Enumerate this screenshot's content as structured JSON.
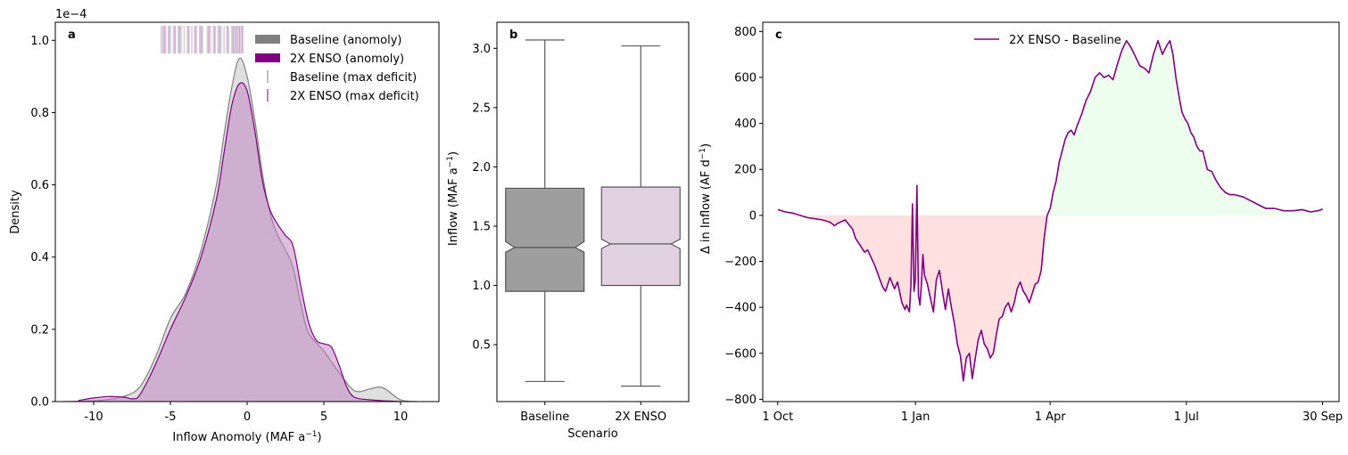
{
  "chart_data": [
    {
      "panel": "a",
      "type": "area",
      "xlabel": "Inflow Anomoly (MAF a",
      "xlabel_sup": "−1",
      "xlabel_end": ")",
      "ylabel": "Density",
      "offset_text": "1e−4",
      "xlim": [
        -12.5,
        12.5
      ],
      "ylim": [
        0,
        1.05
      ],
      "xticks": [
        -10,
        -5,
        0,
        5,
        10
      ],
      "xtick_labels": [
        "-10",
        "-5",
        "0",
        "5",
        "10"
      ],
      "yticks": [
        0,
        0.2,
        0.4,
        0.6,
        0.8,
        1.0
      ],
      "ytick_labels": [
        "0.0",
        "0.2",
        "0.4",
        "0.6",
        "0.8",
        "1.0"
      ],
      "legend_position": "top-right",
      "legend": [
        {
          "label": "Baseline (anomoly)",
          "kind": "patch",
          "color": "#808080"
        },
        {
          "label": "2X ENSO (anomoly)",
          "kind": "patch",
          "color": "#800080"
        },
        {
          "label": "Baseline (max deficit)",
          "kind": "tick",
          "color": "#808080"
        },
        {
          "label": "2X ENSO (max deficit)",
          "kind": "tick",
          "color": "#800080"
        }
      ],
      "series": [
        {
          "name": "Baseline (anomoly)",
          "line_color": "#808080",
          "fill_color": "#c0c0c0",
          "x": [
            -12,
            -10,
            -9,
            -8,
            -7,
            -6,
            -5,
            -4,
            -3,
            -2,
            -1.5,
            -1,
            -0.5,
            0,
            0.5,
            1,
            1.5,
            2,
            2.5,
            3,
            3.5,
            4,
            5,
            6,
            7,
            8,
            8.5,
            9,
            10,
            11
          ],
          "y": [
            0,
            0.002,
            0.006,
            0.015,
            0.04,
            0.12,
            0.23,
            0.3,
            0.42,
            0.6,
            0.74,
            0.87,
            0.95,
            0.9,
            0.78,
            0.63,
            0.52,
            0.46,
            0.42,
            0.37,
            0.27,
            0.19,
            0.14,
            0.08,
            0.03,
            0.035,
            0.04,
            0.035,
            0.005,
            0
          ]
        },
        {
          "name": "2X ENSO (anomoly)",
          "line_color": "#800080",
          "fill_color": "#bf7fbf",
          "x": [
            -11,
            -10,
            -9,
            -8,
            -7.5,
            -7,
            -6,
            -5,
            -4,
            -3,
            -2,
            -1.5,
            -1,
            -0.5,
            0,
            0.5,
            1,
            1.5,
            2,
            2.5,
            3,
            3.5,
            4,
            4.5,
            5,
            5.5,
            6,
            6.5,
            7,
            8,
            9,
            10
          ],
          "y": [
            0.003,
            0.01,
            0.014,
            0.012,
            0.008,
            0.018,
            0.1,
            0.2,
            0.29,
            0.4,
            0.56,
            0.69,
            0.82,
            0.88,
            0.86,
            0.75,
            0.61,
            0.53,
            0.49,
            0.46,
            0.43,
            0.32,
            0.22,
            0.17,
            0.16,
            0.15,
            0.1,
            0.04,
            0.012,
            0.005,
            0.002,
            0
          ]
        }
      ],
      "max_deficit_ticks": {
        "Baseline (max deficit)": {
          "color": "#808080",
          "x": [
            -5.6,
            -5.5,
            -5.3,
            -5.0,
            -4.8,
            -4.5,
            -4.3,
            -4.1,
            -3.9,
            -3.6,
            -3.3,
            -3.1,
            -2.9,
            -2.6,
            -2.4,
            -2.2,
            -1.9,
            -1.7,
            -1.5,
            -1.2,
            -1.0,
            -0.8,
            -0.6,
            -0.4
          ]
        },
        "2X ENSO (max deficit)": {
          "color": "#800080",
          "x": [
            -5.4,
            -5.1,
            -4.7,
            -4.4,
            -3.8,
            -3.4,
            -3.0,
            -2.5,
            -2.1,
            -1.8,
            -1.3,
            -0.9,
            -0.7,
            -0.5,
            -0.3
          ]
        }
      }
    },
    {
      "panel": "b",
      "type": "box",
      "xlabel": "Scenario",
      "ylabel": "Inflow (MAF a",
      "ylabel_sup": "−1",
      "ylabel_end": ")",
      "ylim": [
        0.02,
        3.22
      ],
      "yticks": [
        0.5,
        1.0,
        1.5,
        2.0,
        2.5,
        3.0
      ],
      "ytick_labels": [
        "0.5",
        "1.0",
        "1.5",
        "2.0",
        "2.5",
        "3.0"
      ],
      "categories": [
        "Baseline",
        "2X ENSO"
      ],
      "boxes": [
        {
          "name": "Baseline",
          "color": "#9e9e9e",
          "whisker_low": 0.19,
          "q1": 0.95,
          "notch_low": 1.28,
          "median": 1.32,
          "notch_high": 1.37,
          "q3": 1.82,
          "whisker_high": 3.07
        },
        {
          "name": "2X ENSO",
          "color": "#e0d0e0",
          "whisker_low": 0.15,
          "q1": 1.0,
          "notch_low": 1.31,
          "median": 1.35,
          "notch_high": 1.39,
          "q3": 1.83,
          "whisker_high": 3.02
        }
      ]
    },
    {
      "panel": "c",
      "type": "line",
      "ylabel": "Δ in Inflow (AF d",
      "ylabel_sup": "−1",
      "ylabel_end": ")",
      "xlim": [
        -10,
        375
      ],
      "ylim": [
        -810,
        840
      ],
      "xticks": [
        0,
        92,
        182,
        273,
        364
      ],
      "xtick_labels": [
        "1 Oct",
        "1 Jan",
        "1 Apr",
        "1 Jul",
        "30 Sep"
      ],
      "yticks": [
        -800,
        -600,
        -400,
        -200,
        0,
        200,
        400,
        600,
        800
      ],
      "ytick_labels": [
        "−800",
        "−600",
        "−400",
        "−200",
        "0",
        "200",
        "400",
        "600",
        "800"
      ],
      "legend_position": "top-center",
      "negative_fill_color": "#ffe0e0",
      "positive_fill_color": "#eefeee",
      "series": [
        {
          "name": "2X ENSO - Baseline",
          "color": "#800080",
          "x": [
            0,
            5,
            10,
            15,
            20,
            25,
            30,
            35,
            38,
            40,
            45,
            50,
            52,
            55,
            58,
            60,
            65,
            70,
            72,
            75,
            78,
            80,
            83,
            85,
            86,
            88,
            89,
            90,
            91,
            92,
            93,
            94,
            95,
            96,
            97,
            98,
            100,
            102,
            104,
            106,
            108,
            110,
            112,
            114,
            116,
            118,
            120,
            122,
            124,
            126,
            128,
            130,
            132,
            134,
            136,
            138,
            140,
            142,
            144,
            146,
            148,
            150,
            152,
            154,
            156,
            158,
            160,
            162,
            164,
            166,
            168,
            170,
            172,
            174,
            176,
            178,
            180,
            182,
            184,
            186,
            188,
            190,
            192,
            194,
            196,
            198,
            200,
            203,
            206,
            209,
            212,
            215,
            218,
            221,
            224,
            227,
            230,
            233,
            236,
            239,
            242,
            245,
            248,
            251,
            254,
            257,
            260,
            262,
            264,
            266,
            268,
            270,
            272,
            274,
            276,
            278,
            280,
            282,
            284,
            287,
            290,
            293,
            296,
            299,
            302,
            305,
            308,
            311,
            314,
            317,
            320,
            323,
            326,
            329,
            332,
            335,
            338,
            341,
            344,
            347,
            350,
            353,
            356,
            359,
            362,
            364
          ],
          "y": [
            25,
            15,
            10,
            0,
            -10,
            -15,
            -20,
            -30,
            -45,
            -35,
            -20,
            -60,
            -100,
            -130,
            -160,
            -150,
            -220,
            -310,
            -330,
            -270,
            -320,
            -290,
            -380,
            -410,
            -390,
            -420,
            -300,
            50,
            -330,
            -280,
            130,
            -350,
            -390,
            -300,
            -170,
            -260,
            -300,
            -360,
            -420,
            -280,
            -240,
            -330,
            -410,
            -320,
            -400,
            -470,
            -560,
            -610,
            -720,
            -620,
            -600,
            -710,
            -620,
            -540,
            -500,
            -560,
            -580,
            -620,
            -600,
            -520,
            -450,
            -440,
            -400,
            -380,
            -420,
            -380,
            -320,
            -290,
            -330,
            -350,
            -380,
            -340,
            -300,
            -290,
            -240,
            -100,
            0,
            30,
            100,
            150,
            230,
            280,
            330,
            360,
            370,
            350,
            390,
            440,
            500,
            540,
            600,
            620,
            600,
            610,
            590,
            660,
            720,
            760,
            730,
            690,
            650,
            640,
            620,
            700,
            760,
            700,
            740,
            760,
            700,
            600,
            520,
            450,
            420,
            400,
            360,
            340,
            300,
            280,
            280,
            200,
            190,
            150,
            120,
            100,
            90,
            90,
            85,
            80,
            70,
            60,
            50,
            40,
            30,
            30,
            30,
            25,
            20,
            20,
            20,
            22,
            25,
            20,
            15,
            18,
            22,
            28
          ]
        }
      ]
    }
  ]
}
